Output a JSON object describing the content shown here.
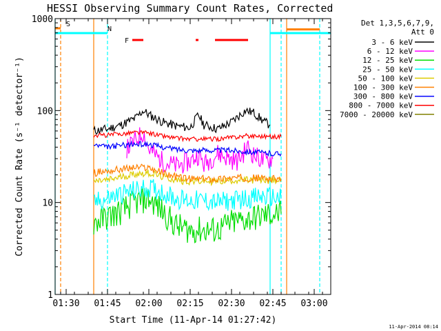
{
  "chart_data": {
    "type": "line",
    "title": "HESSI Observing Summary Count Rates, Corrected",
    "xlabel": "Start Time (11-Apr-14 01:27:42)",
    "ylabel": "Corrected Count Rate (s⁻¹ detector⁻¹)",
    "xlim": [
      "01:26",
      "03:06"
    ],
    "ylim": [
      1,
      1000
    ],
    "yscale": "log",
    "xticks": [
      "01:30",
      "01:45",
      "02:00",
      "02:15",
      "02:30",
      "02:45",
      "03:00"
    ],
    "yticks": [
      {
        "v": 1,
        "label": "1"
      },
      {
        "v": 10,
        "label": "10"
      },
      {
        "v": 100,
        "label": "100"
      },
      {
        "v": 1000,
        "label": "1000"
      }
    ],
    "legend_header": [
      "Det 1,3,5,6,7,9,",
      "Att 0"
    ],
    "legend_position": "right",
    "footer_timestamp": "11-Apr-2014 08:14",
    "series": [
      {
        "name": "3 - 6 keV",
        "color": "#000000",
        "data": [
          [
            "01:40",
            60
          ],
          [
            "01:45",
            63
          ],
          [
            "01:50",
            70
          ],
          [
            "01:55",
            82
          ],
          [
            "01:58",
            100
          ],
          [
            "02:00",
            90
          ],
          [
            "02:05",
            75
          ],
          [
            "02:10",
            68
          ],
          [
            "02:15",
            65
          ],
          [
            "02:18",
            90
          ],
          [
            "02:20",
            70
          ],
          [
            "02:25",
            63
          ],
          [
            "02:30",
            75
          ],
          [
            "02:35",
            100
          ],
          [
            "02:38",
            95
          ],
          [
            "02:42",
            75
          ],
          [
            "02:44",
            70
          ]
        ]
      },
      {
        "name": "6 - 12 keV",
        "color": "#ff00ff",
        "data": [
          [
            "01:52",
            38
          ],
          [
            "01:58",
            58
          ],
          [
            "02:00",
            38
          ],
          [
            "02:05",
            28
          ],
          [
            "02:10",
            25
          ],
          [
            "02:15",
            28
          ],
          [
            "02:18",
            33
          ],
          [
            "02:20",
            26
          ],
          [
            "02:25",
            34
          ],
          [
            "02:28",
            31
          ],
          [
            "02:32",
            28
          ],
          [
            "02:36",
            40
          ],
          [
            "02:38",
            33
          ],
          [
            "02:42",
            28
          ],
          [
            "02:45",
            30
          ]
        ]
      },
      {
        "name": "12 - 25 keV",
        "color": "#00dd00",
        "data": [
          [
            "01:40",
            6
          ],
          [
            "01:45",
            7
          ],
          [
            "01:50",
            8
          ],
          [
            "01:55",
            10
          ],
          [
            "02:00",
            11
          ],
          [
            "02:05",
            8
          ],
          [
            "02:10",
            5.5
          ],
          [
            "02:15",
            5
          ],
          [
            "02:20",
            5
          ],
          [
            "02:25",
            5
          ],
          [
            "02:30",
            6
          ],
          [
            "02:35",
            6.5
          ],
          [
            "02:40",
            7
          ],
          [
            "02:45",
            7.5
          ],
          [
            "02:48",
            7.5
          ]
        ]
      },
      {
        "name": "25 - 50 keV",
        "color": "#00ffff",
        "data": [
          [
            "01:40",
            10
          ],
          [
            "01:45",
            11
          ],
          [
            "01:50",
            12.5
          ],
          [
            "01:55",
            13.5
          ],
          [
            "02:00",
            14.5
          ],
          [
            "02:05",
            13
          ],
          [
            "02:10",
            11
          ],
          [
            "02:15",
            10.5
          ],
          [
            "02:20",
            10.5
          ],
          [
            "02:25",
            10
          ],
          [
            "02:30",
            10.5
          ],
          [
            "02:35",
            11
          ],
          [
            "02:40",
            11.5
          ],
          [
            "02:45",
            11.5
          ],
          [
            "02:48",
            11
          ]
        ]
      },
      {
        "name": "50 - 100 keV",
        "color": "#ddcc00",
        "data": [
          [
            "01:40",
            17
          ],
          [
            "01:45",
            17.5
          ],
          [
            "01:50",
            19
          ],
          [
            "01:55",
            20.5
          ],
          [
            "02:00",
            21
          ],
          [
            "02:05",
            19
          ],
          [
            "02:10",
            17.5
          ],
          [
            "02:15",
            17
          ],
          [
            "02:20",
            17
          ],
          [
            "02:25",
            17
          ],
          [
            "02:30",
            17.5
          ],
          [
            "02:35",
            17.5
          ],
          [
            "02:40",
            17.5
          ],
          [
            "02:45",
            17.5
          ],
          [
            "02:48",
            17
          ]
        ]
      },
      {
        "name": "100 - 300 keV",
        "color": "#ff8000",
        "data": [
          [
            "01:40",
            21
          ],
          [
            "01:45",
            22
          ],
          [
            "01:50",
            23
          ],
          [
            "01:55",
            24
          ],
          [
            "02:00",
            24
          ],
          [
            "02:05",
            21
          ],
          [
            "02:10",
            19
          ],
          [
            "02:15",
            18
          ],
          [
            "02:20",
            18
          ],
          [
            "02:25",
            18
          ],
          [
            "02:30",
            18.5
          ],
          [
            "02:35",
            18.5
          ],
          [
            "02:40",
            18.5
          ],
          [
            "02:45",
            18
          ],
          [
            "02:48",
            18
          ]
        ]
      },
      {
        "name": "300 - 800 keV",
        "color": "#0000ff",
        "data": [
          [
            "01:40",
            42
          ],
          [
            "01:45",
            40
          ],
          [
            "01:50",
            42
          ],
          [
            "01:55",
            43
          ],
          [
            "02:00",
            43
          ],
          [
            "02:05",
            40
          ],
          [
            "02:10",
            38
          ],
          [
            "02:15",
            37
          ],
          [
            "02:20",
            37
          ],
          [
            "02:25",
            37
          ],
          [
            "02:30",
            37
          ],
          [
            "02:35",
            36
          ],
          [
            "02:40",
            35
          ],
          [
            "02:45",
            34
          ],
          [
            "02:48",
            34
          ]
        ]
      },
      {
        "name": "800 - 7000 keV",
        "color": "#ff0000",
        "data": [
          [
            "01:40",
            54
          ],
          [
            "01:45",
            54
          ],
          [
            "01:50",
            56
          ],
          [
            "01:55",
            58
          ],
          [
            "02:00",
            57
          ],
          [
            "02:05",
            53
          ],
          [
            "02:10",
            50
          ],
          [
            "02:15",
            49
          ],
          [
            "02:20",
            49
          ],
          [
            "02:25",
            49
          ],
          [
            "02:30",
            51
          ],
          [
            "02:35",
            53
          ],
          [
            "02:40",
            53
          ],
          [
            "02:45",
            52
          ],
          [
            "02:48",
            52
          ]
        ]
      },
      {
        "name": "7000 - 20000 keV",
        "color": "#808000",
        "data": []
      }
    ],
    "flags": {
      "S": {
        "label": "S",
        "color": "#ff8000",
        "ranges": [
          [
            "01:26",
            "01:28"
          ]
        ]
      },
      "N": {
        "label": "N",
        "color": "#00ffff",
        "ranges": [
          [
            "01:26",
            "01:45"
          ],
          [
            "02:44",
            "03:06"
          ]
        ]
      },
      "F": {
        "label": "F",
        "color": "#ff0000",
        "ranges": [
          [
            "01:54",
            "01:58"
          ],
          [
            "02:17",
            "02:18"
          ],
          [
            "02:24",
            "02:36"
          ]
        ]
      }
    },
    "attenuator": {
      "color": "#ff8000",
      "value": 750,
      "range": [
        "02:50",
        "03:02"
      ]
    },
    "vlines": [
      {
        "t": "01:26",
        "color": "#00ffff",
        "style": "solid"
      },
      {
        "t": "01:28",
        "color": "#ff8000",
        "style": "dash"
      },
      {
        "t": "01:40",
        "color": "#ff8000",
        "style": "solid"
      },
      {
        "t": "01:45",
        "color": "#00ffff",
        "style": "dash"
      },
      {
        "t": "02:44",
        "color": "#00ffff",
        "style": "solid"
      },
      {
        "t": "02:48",
        "color": "#00ffff",
        "style": "dash"
      },
      {
        "t": "02:50",
        "color": "#ff8000",
        "style": "solid"
      },
      {
        "t": "03:02",
        "color": "#00ffff",
        "style": "dash"
      }
    ]
  }
}
